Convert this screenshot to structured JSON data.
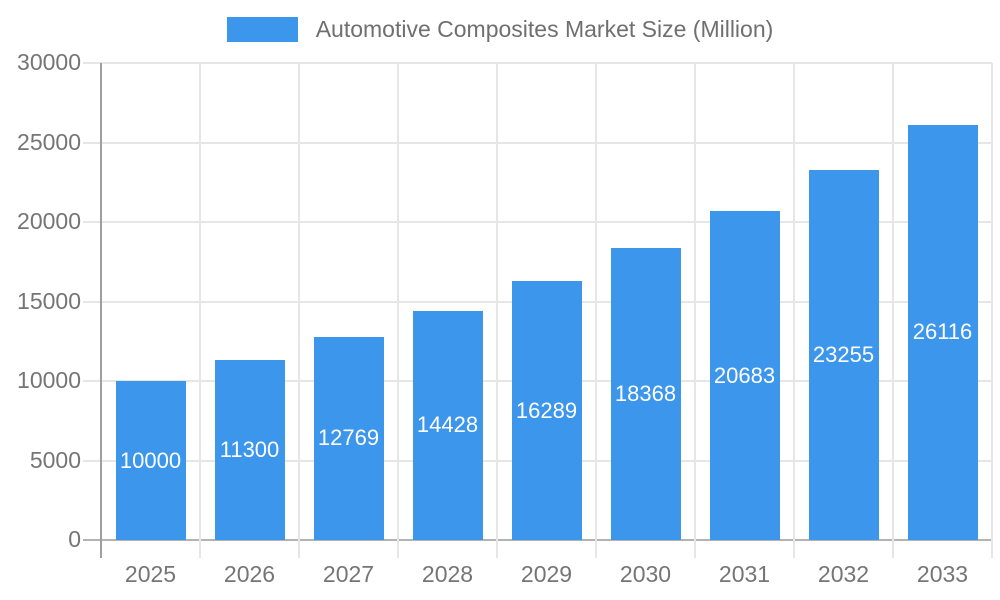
{
  "chart_data": {
    "type": "bar",
    "title": "Automotive Composites Market Size (Million)",
    "categories": [
      "2025",
      "2026",
      "2027",
      "2028",
      "2029",
      "2030",
      "2031",
      "2032",
      "2033"
    ],
    "values": [
      10000,
      11300,
      12769,
      14428,
      16289,
      18368,
      20683,
      23255,
      26116
    ],
    "xlabel": "",
    "ylabel": "",
    "ylim": [
      0,
      30000
    ],
    "yticks": [
      0,
      5000,
      10000,
      15000,
      20000,
      25000,
      30000
    ],
    "grid": true,
    "legend_position": "top-center",
    "colors": {
      "bar": "#3B96EC",
      "bar_value_text": "#FFFFFF",
      "axis_text": "#757575",
      "title_text": "#6F6F6F",
      "gridline": "#E6E6E6",
      "y_axis_line": "#9E9E9E",
      "x_axis_line": "#B3B3B3",
      "background": "#FFFFFF"
    }
  }
}
